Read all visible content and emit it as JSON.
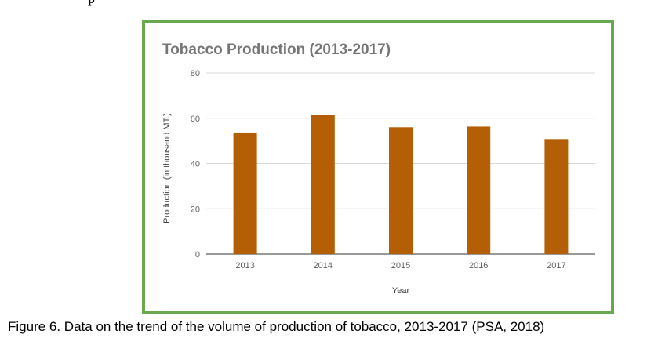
{
  "page": {
    "top_fragment": "p",
    "caption": "Figure 6. Data on the trend of the volume of production of tobacco, 2013-2017 (PSA, 2018)"
  },
  "colors": {
    "frame_border": "#6aa84f",
    "bar": "#b45f06",
    "title": "#757575",
    "axis_text": "#616161",
    "grid": "#d9d9d9"
  },
  "chart_data": {
    "type": "bar",
    "title": "Tobacco Production (2013-2017)",
    "xlabel": "Year",
    "ylabel": "Production (in thousand MT.)",
    "categories": [
      "2013",
      "2014",
      "2015",
      "2016",
      "2017"
    ],
    "values": [
      53.7,
      61.3,
      56.0,
      56.3,
      50.8
    ],
    "ylim": [
      0,
      80
    ],
    "yticks": [
      0,
      20,
      40,
      60,
      80
    ],
    "grid": true,
    "legend": "none"
  }
}
